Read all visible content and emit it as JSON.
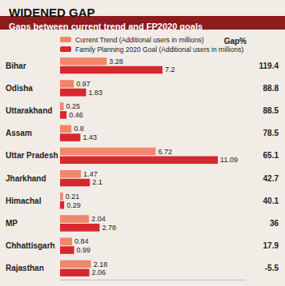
{
  "chart_data": {
    "type": "bar",
    "orientation": "horizontal",
    "title": "WIDENED GAP",
    "subtitle": "Gaps between current trend and FP2020 goals",
    "categories": [
      "Bihar",
      "Odisha",
      "Uttarakhand",
      "Assam",
      "Uttar Pradesh",
      "Jharkhand",
      "Himachal",
      "MP",
      "Chhattisgarh",
      "Rajasthan"
    ],
    "series": [
      {
        "name": "Current Trend (Additional users in millions)",
        "color": "#f0876a",
        "values": [
          3.28,
          0.97,
          0.25,
          0.8,
          6.72,
          1.47,
          0.21,
          2.04,
          0.84,
          2.18
        ]
      },
      {
        "name": "Family Planning 2020 Goal (Additional users in millions)",
        "color": "#d7282f",
        "values": [
          7.2,
          1.83,
          0.46,
          1.43,
          11.09,
          2.1,
          0.29,
          2.78,
          0.99,
          2.06
        ]
      }
    ],
    "gap_title": "Gap%",
    "gap": [
      119.4,
      88.8,
      88.5,
      78.5,
      65.1,
      42.7,
      40.1,
      36,
      17.9,
      -5.5
    ],
    "xlim": [
      0,
      13
    ],
    "xticks": [],
    "tick_labels": "y",
    "data_labels": true,
    "legend": "top",
    "grid": false
  }
}
